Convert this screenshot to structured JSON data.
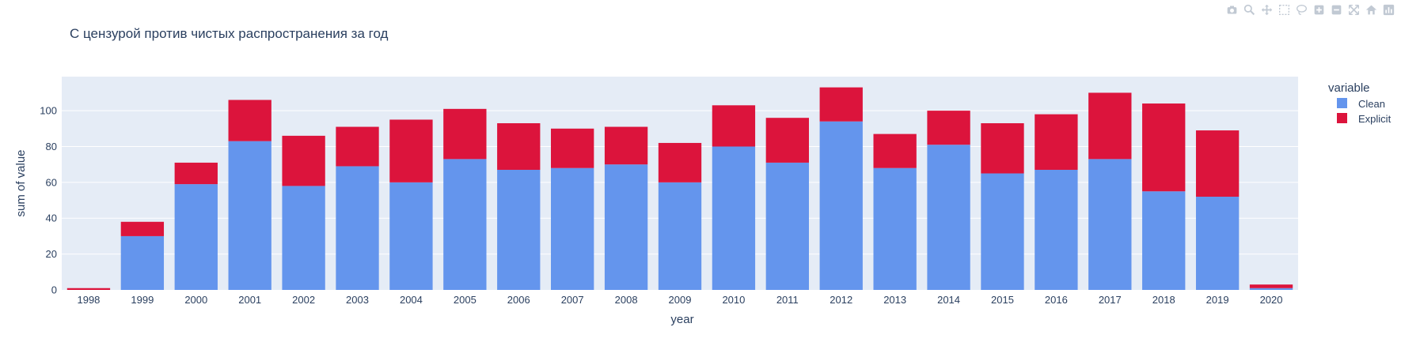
{
  "modebar": {
    "icons": [
      "camera-icon",
      "zoom-icon",
      "pan-icon",
      "box-select-icon",
      "lasso-select-icon",
      "zoom-in-icon",
      "zoom-out-icon",
      "autoscale-icon",
      "reset-axes-icon",
      "plotly-logo-icon"
    ]
  },
  "colors": {
    "clean": "#6495ED",
    "explicit": "#DC143C",
    "plot_bg": "#E5ECF6",
    "text": "#2a3f5f"
  },
  "chart_data": {
    "type": "bar",
    "barmode": "stack",
    "title": "С цензурой против чистых распространения за год",
    "xlabel": "year",
    "ylabel": "sum of value",
    "ylim": [
      0,
      119
    ],
    "yticks": [
      0,
      20,
      40,
      60,
      80,
      100
    ],
    "grid": true,
    "legend_title": "variable",
    "legend_position": "right",
    "categories": [
      "1998",
      "1999",
      "2000",
      "2001",
      "2002",
      "2003",
      "2004",
      "2005",
      "2006",
      "2007",
      "2008",
      "2009",
      "2010",
      "2011",
      "2012",
      "2013",
      "2014",
      "2015",
      "2016",
      "2017",
      "2018",
      "2019",
      "2020"
    ],
    "series": [
      {
        "name": "Clean",
        "color": "#6495ED",
        "values": [
          0,
          30,
          59,
          83,
          58,
          69,
          60,
          73,
          67,
          68,
          70,
          60,
          80,
          71,
          94,
          68,
          81,
          65,
          67,
          73,
          55,
          52,
          1
        ]
      },
      {
        "name": "Explicit",
        "color": "#DC143C",
        "values": [
          1,
          8,
          12,
          23,
          28,
          22,
          35,
          28,
          26,
          22,
          21,
          22,
          23,
          25,
          19,
          19,
          19,
          28,
          31,
          37,
          49,
          37,
          2
        ]
      }
    ]
  }
}
